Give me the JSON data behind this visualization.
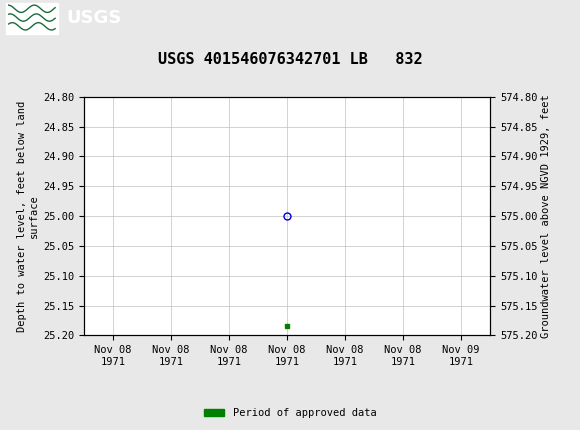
{
  "title": "USGS 401546076342701 LB   832",
  "title_fontsize": 11,
  "bg_color": "#e8e8e8",
  "plot_bg_color": "#ffffff",
  "header_color": "#1a6b3a",
  "left_ylabel": "Depth to water level, feet below land\nsurface",
  "right_ylabel": "Groundwater level above NGVD 1929, feet",
  "ylim_left": [
    24.8,
    25.2
  ],
  "ylim_right": [
    575.2,
    574.8
  ],
  "left_yticks": [
    24.8,
    24.85,
    24.9,
    24.95,
    25.0,
    25.05,
    25.1,
    25.15,
    25.2
  ],
  "right_yticks": [
    575.2,
    575.15,
    575.1,
    575.05,
    575.0,
    574.95,
    574.9,
    574.85,
    574.8
  ],
  "xtick_labels": [
    "Nov 08\n1971",
    "Nov 08\n1971",
    "Nov 08\n1971",
    "Nov 08\n1971",
    "Nov 08\n1971",
    "Nov 08\n1971",
    "Nov 09\n1971"
  ],
  "xtick_positions": [
    0,
    1,
    2,
    3,
    4,
    5,
    6
  ],
  "data_point_x": 3.0,
  "data_point_y": 25.0,
  "data_point_color": "#0000cc",
  "data_point_marker": "o",
  "data_point_size": 5,
  "green_square_x": 3.0,
  "green_square_y": 25.185,
  "green_square_color": "#008000",
  "legend_label": "Period of approved data",
  "legend_color": "#008000",
  "font_family": "monospace",
  "grid_color": "#c0c0c0",
  "axis_font_size": 7.5,
  "tick_font_size": 7.5
}
